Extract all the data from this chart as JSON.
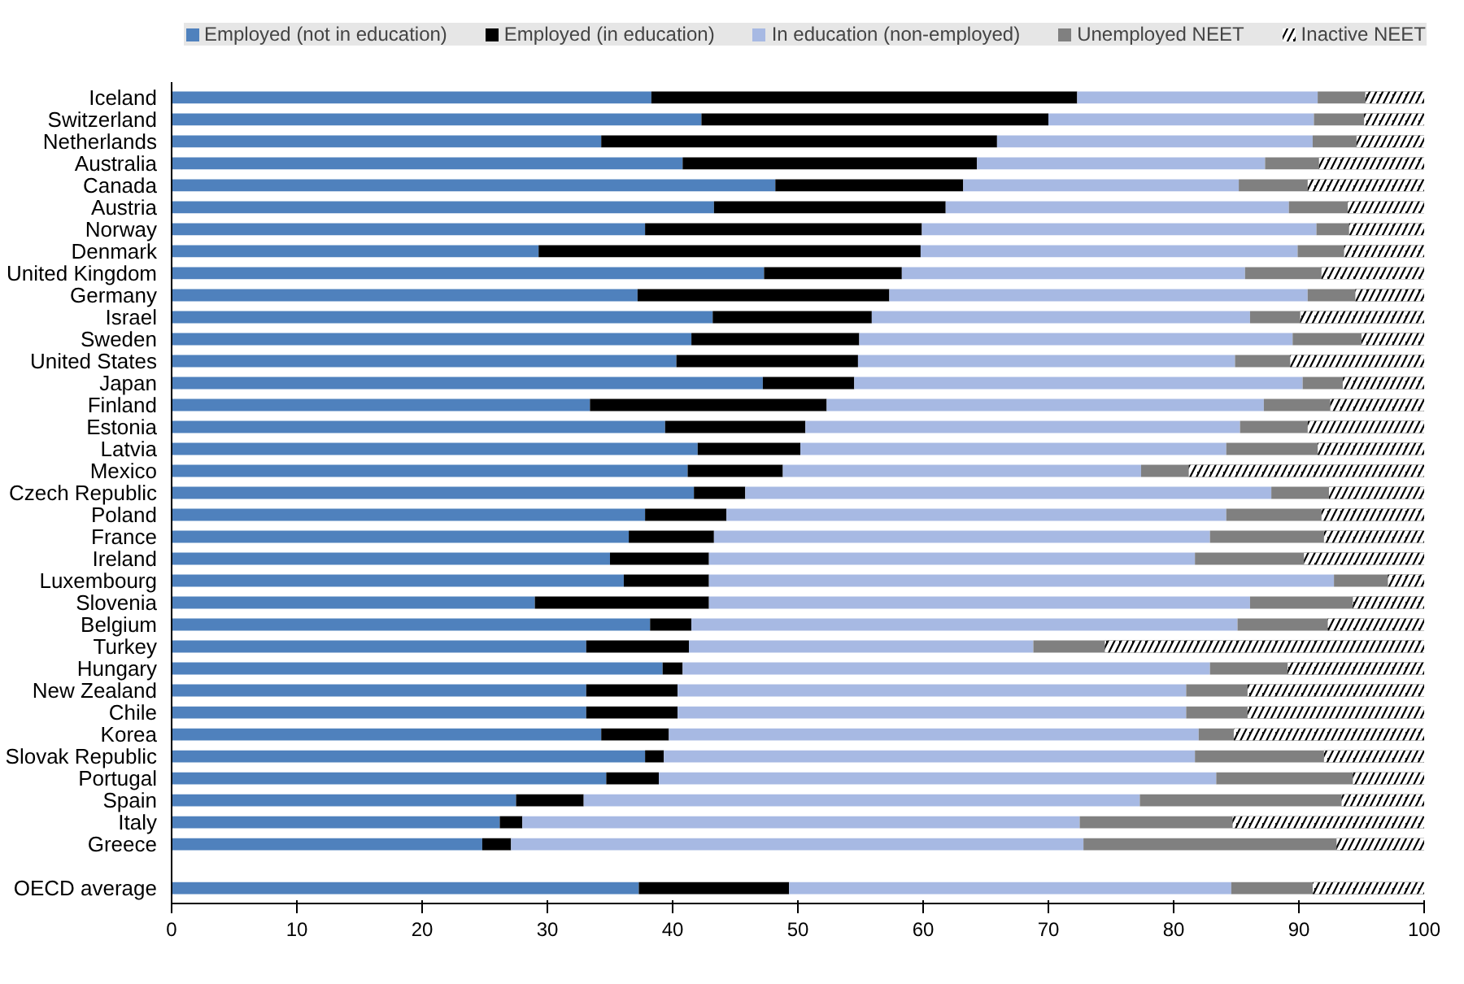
{
  "chart_data": {
    "type": "bar",
    "orientation": "horizontal",
    "stacked": true,
    "legend": "top",
    "grid": false,
    "categories": [
      "Iceland",
      "Switzerland",
      "Netherlands",
      "Australia",
      "Canada",
      "Austria",
      "Norway",
      "Denmark",
      "United Kingdom",
      "Germany",
      "Israel",
      "Sweden",
      "United States",
      "Japan",
      "Finland",
      "Estonia",
      "Latvia",
      "Mexico",
      "Czech Republic",
      "Poland",
      "France",
      "Ireland",
      "Luxembourg",
      "Slovenia",
      "Belgium",
      "Turkey",
      "Hungary",
      "New Zealand",
      "Chile",
      "Korea",
      "Slovak Republic",
      "Portugal",
      "Spain",
      "Italy",
      "Greece",
      null,
      "OECD average"
    ],
    "xlim": [
      0,
      100
    ],
    "xticks": [
      0,
      10,
      20,
      30,
      40,
      50,
      60,
      70,
      80,
      90,
      100
    ],
    "series": [
      {
        "name": "Employed (not in education)",
        "color": "#4f81bd",
        "values": [
          38.3,
          42.3,
          34.3,
          40.8,
          48.2,
          43.3,
          37.8,
          29.3,
          47.3,
          37.2,
          43.2,
          41.5,
          40.3,
          47.2,
          33.4,
          39.4,
          42.0,
          41.2,
          41.7,
          37.8,
          36.5,
          35.0,
          36.1,
          29.0,
          38.2,
          33.1,
          39.2,
          33.1,
          33.1,
          34.3,
          37.8,
          34.7,
          27.5,
          26.2,
          24.8,
          null,
          37.3
        ]
      },
      {
        "name": "Employed (in education)",
        "color": "#000000",
        "values": [
          34.0,
          27.7,
          31.6,
          23.5,
          15.0,
          18.5,
          22.1,
          30.5,
          11.0,
          20.1,
          12.7,
          13.4,
          14.5,
          7.3,
          18.9,
          11.2,
          8.2,
          7.6,
          4.1,
          6.5,
          6.8,
          7.9,
          6.8,
          13.9,
          3.3,
          8.2,
          1.6,
          7.3,
          7.3,
          5.4,
          1.5,
          4.2,
          5.4,
          1.8,
          2.3,
          null,
          12.0
        ]
      },
      {
        "name": "In education (non-employed)",
        "color": "#a7b9e3",
        "values": [
          19.2,
          21.2,
          25.2,
          23.0,
          22.0,
          27.4,
          31.5,
          30.1,
          27.4,
          33.4,
          30.2,
          34.6,
          30.1,
          35.8,
          34.9,
          34.7,
          34.0,
          28.6,
          42.0,
          39.9,
          39.6,
          38.8,
          49.9,
          43.2,
          43.6,
          27.5,
          42.1,
          40.6,
          40.6,
          42.3,
          42.4,
          44.5,
          44.4,
          44.5,
          45.7,
          null,
          35.3
        ]
      },
      {
        "name": "Unemployed NEET",
        "color": "#808080",
        "values": [
          3.8,
          4.0,
          3.5,
          4.3,
          5.5,
          4.7,
          2.6,
          3.7,
          6.1,
          3.8,
          4.0,
          5.5,
          4.4,
          3.2,
          5.3,
          5.4,
          7.3,
          3.8,
          4.6,
          7.6,
          9.1,
          8.7,
          4.3,
          8.2,
          7.2,
          5.7,
          6.2,
          4.9,
          4.9,
          2.8,
          10.3,
          10.9,
          16.1,
          12.2,
          20.2,
          null,
          6.5
        ]
      },
      {
        "name": "Inactive NEET",
        "color": "#000000",
        "values": [
          4.7,
          4.8,
          5.4,
          8.4,
          9.3,
          6.1,
          6.0,
          6.4,
          8.2,
          5.5,
          9.9,
          5.0,
          10.7,
          6.5,
          7.5,
          9.3,
          8.5,
          18.8,
          7.6,
          8.2,
          8.0,
          9.6,
          2.9,
          5.7,
          7.7,
          25.5,
          10.9,
          14.1,
          14.1,
          15.2,
          8.0,
          5.7,
          6.6,
          15.3,
          7.0,
          null,
          8.9
        ]
      }
    ]
  }
}
